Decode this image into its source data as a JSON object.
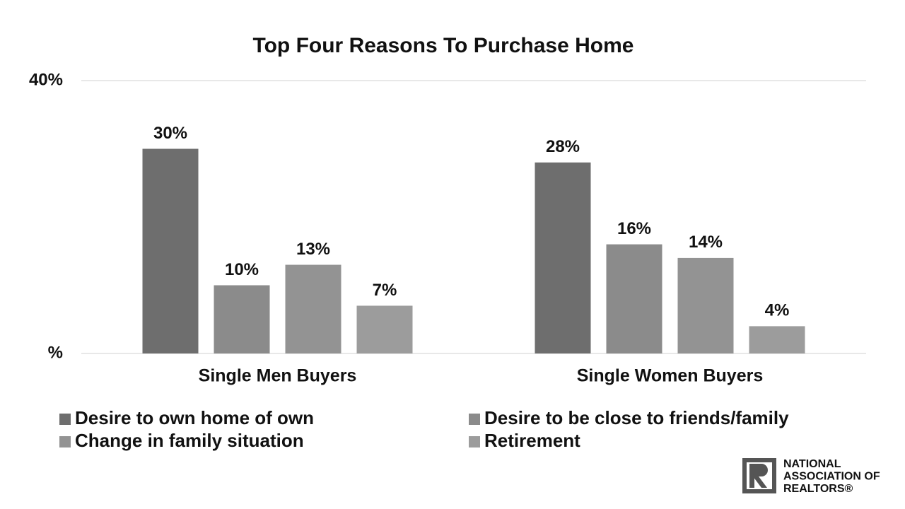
{
  "chart_data": {
    "type": "bar",
    "title": "Top Four Reasons To Purchase Home",
    "categories": [
      "Single Men Buyers",
      "Single Women Buyers"
    ],
    "series": [
      {
        "name": "Desire to own home of own",
        "color": "#6e6e6e",
        "values": [
          30,
          28
        ],
        "value_labels": [
          "30%",
          "28%"
        ]
      },
      {
        "name": "Desire to be close to friends/family",
        "color": "#8b8b8b",
        "values": [
          10,
          16
        ],
        "value_labels": [
          "10%",
          "16%"
        ]
      },
      {
        "name": "Change in family situation",
        "color": "#939393",
        "values": [
          13,
          14
        ],
        "value_labels": [
          "13%",
          "14%"
        ]
      },
      {
        "name": "Retirement",
        "color": "#9c9c9c",
        "values": [
          7,
          4
        ],
        "value_labels": [
          "7%",
          "4%"
        ]
      }
    ],
    "ylim": [
      0,
      40
    ],
    "yticks": [
      {
        "value": 0,
        "label": "%"
      },
      {
        "value": 40,
        "label": "40%"
      }
    ],
    "grid": true
  },
  "logo": {
    "lines": [
      "NATIONAL",
      "ASSOCIATION OF",
      "REALTORS®"
    ]
  }
}
